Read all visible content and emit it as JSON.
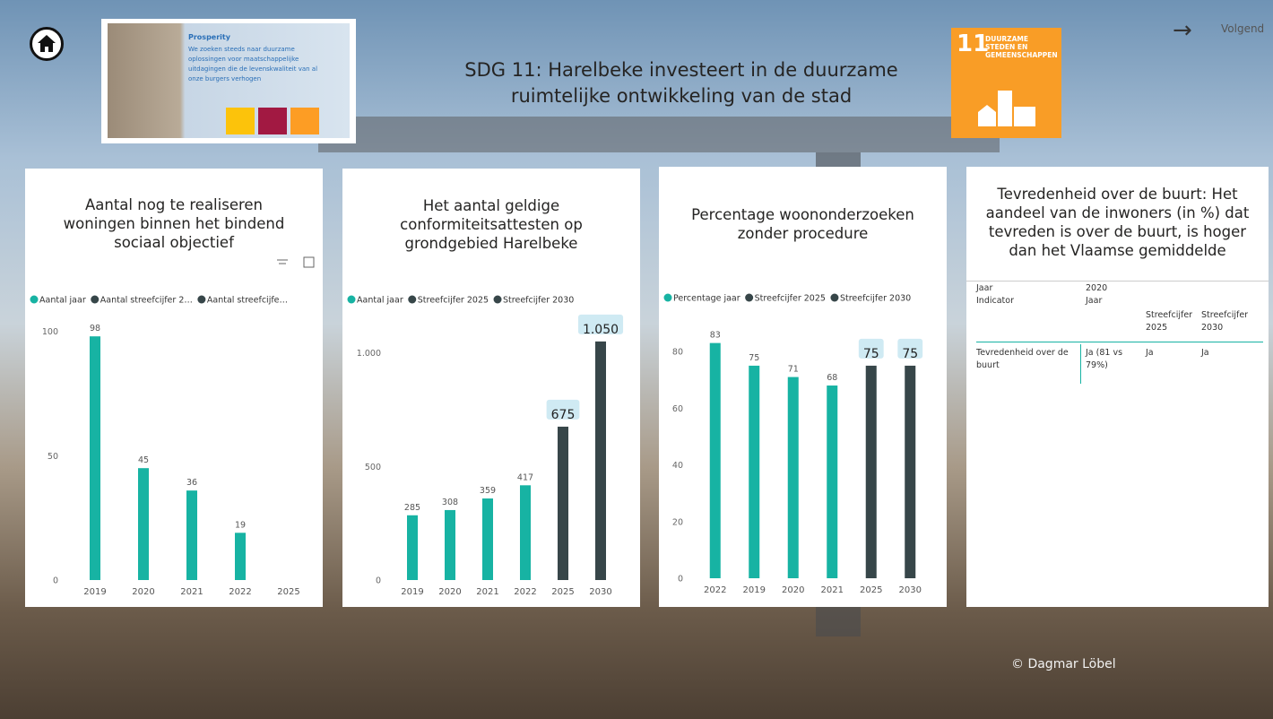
{
  "header": {
    "title": "SDG 11: Harelbeke investeert in de duurzame ruimtelijke ontwikkeling van de stad",
    "next_label": "Volgend",
    "thumbnail": {
      "heading": "Prosperity",
      "text": "We zoeken steeds naar duurzame oplossingen voor maatschappelijke uitdagingen die de levenskwaliteit van al onze burgers verhogen"
    },
    "sdg_badge": {
      "number": "11",
      "text": "DUURZAME STEDEN EN GEMEENSCHAPPEN"
    }
  },
  "chart_data": [
    {
      "type": "bar",
      "title": "Aantal nog te realiseren woningen binnen het bindend sociaal objectief",
      "categories": [
        "2019",
        "2020",
        "2021",
        "2022",
        "2025"
      ],
      "series": [
        {
          "name": "Aantal jaar",
          "color": "#17b3a3",
          "values": [
            98,
            45,
            36,
            19,
            null
          ]
        },
        {
          "name": "Aantal streefcijfer 2…",
          "color": "#374649",
          "values": [
            null,
            null,
            null,
            null,
            null
          ]
        },
        {
          "name": "Aantal streefcijfe…",
          "color": "#374649",
          "values": [
            null,
            null,
            null,
            null,
            null
          ]
        }
      ],
      "ylim": [
        0,
        106
      ],
      "yticks": [
        0,
        50,
        100
      ]
    },
    {
      "type": "bar",
      "title": "Het aantal geldige conformiteitsattesten op grondgebied Harelbeke",
      "categories": [
        "2019",
        "2020",
        "2021",
        "2022",
        "2025",
        "2030"
      ],
      "series": [
        {
          "name": "Aantal jaar",
          "color": "#17b3a3",
          "values": [
            285,
            308,
            359,
            417,
            null,
            null
          ]
        },
        {
          "name": "Streefcijfer 2025",
          "color": "#374649",
          "values": [
            null,
            null,
            null,
            null,
            675,
            null
          ]
        },
        {
          "name": "Streefcijfer 2030",
          "color": "#374649",
          "values": [
            null,
            null,
            null,
            null,
            null,
            1050
          ],
          "value_labels": [
            null,
            null,
            null,
            null,
            null,
            "1.050"
          ]
        }
      ],
      "ylim": [
        0,
        1160
      ],
      "yticks": [
        0,
        500,
        {
          "value": 1000,
          "label": "1.000"
        }
      ]
    },
    {
      "type": "bar",
      "title": "Percentage woononderzoeken zonder procedure",
      "categories": [
        "2022",
        "2019",
        "2020",
        "2021",
        "2025",
        "2030"
      ],
      "series": [
        {
          "name": "Percentage jaar",
          "color": "#17b3a3",
          "values": [
            83,
            75,
            71,
            68,
            null,
            null
          ]
        },
        {
          "name": "Streefcijfer 2025",
          "color": "#374649",
          "values": [
            null,
            null,
            null,
            null,
            75,
            null
          ]
        },
        {
          "name": "Streefcijfer 2030",
          "color": "#374649",
          "values": [
            null,
            null,
            null,
            null,
            null,
            75
          ]
        }
      ],
      "ylim": [
        0,
        93
      ],
      "yticks": [
        0,
        20,
        40,
        60,
        80
      ]
    }
  ],
  "table": {
    "title": "Tevredenheid over de buurt: Het aandeel van de inwoners (in %) dat tevreden is over de buurt, is hoger dan het Vlaamse gemiddelde",
    "header_rows": [
      [
        "Jaar",
        "2020"
      ],
      [
        "Indicator",
        "Jaar",
        "Streefcijfer 2025",
        "Streefcijfer 2030"
      ]
    ],
    "rows": [
      [
        "Tevredenheid over de buurt",
        "Ja (81 vs 79%)",
        "Ja",
        "Ja"
      ]
    ]
  },
  "credit": "© Dagmar Löbel"
}
